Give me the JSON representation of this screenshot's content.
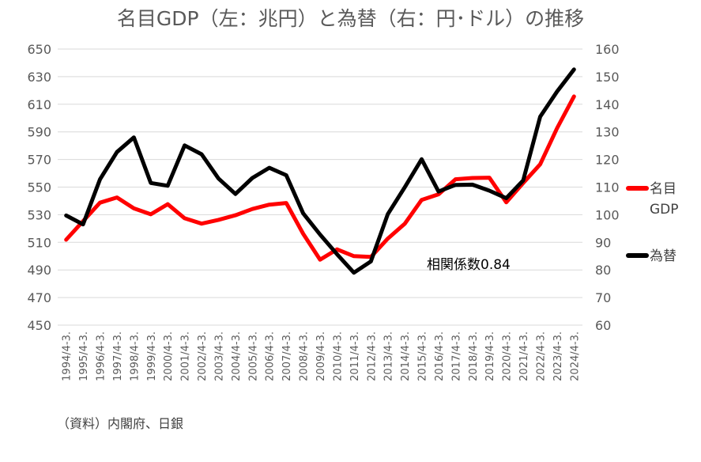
{
  "chart_data": {
    "type": "line",
    "title": "名目GDP（左：兆円）と為替（右：円･ドル）の推移",
    "categories": [
      "1994/4-3.",
      "1995/4-3.",
      "1996/4-3.",
      "1997/4-3.",
      "1998/4-3.",
      "1999/4-3.",
      "2000/4-3.",
      "2001/4-3.",
      "2002/4-3.",
      "2003/4-3.",
      "2004/4-3.",
      "2005/4-3.",
      "2006/4-3.",
      "2007/4-3.",
      "2008/4-3.",
      "2009/4-3.",
      "2010/4-3.",
      "2011/4-3.",
      "2012/4-3.",
      "2013/4-3.",
      "2014/4-3.",
      "2015/4-3.",
      "2016/4-3.",
      "2017/4-3.",
      "2018/4-3.",
      "2019/4-3.",
      "2020/4-3.",
      "2021/4-3.",
      "2022/4-3.",
      "2023/4-3.",
      "2024/4-3."
    ],
    "series": [
      {
        "name": "名目GDP",
        "label_lines": [
          "名目",
          "GDP"
        ],
        "axis": "left",
        "color": "#ff0000",
        "values": [
          511.9,
          525.3,
          538.7,
          542.5,
          534.6,
          530.3,
          537.6,
          527.4,
          523.5,
          526.3,
          529.6,
          534.1,
          537.3,
          538.5,
          516.2,
          497.4,
          504.9,
          500.0,
          499.4,
          512.7,
          523.4,
          540.7,
          544.8,
          555.7,
          556.6,
          556.8,
          539.0,
          553.0,
          566.5,
          592.7,
          615.7
        ]
      },
      {
        "name": "為替",
        "label_lines": [
          "為替"
        ],
        "axis": "right",
        "color": "#000000",
        "values": [
          99.7,
          96.5,
          112.8,
          122.7,
          128.0,
          111.5,
          110.5,
          125.1,
          121.9,
          113.1,
          107.5,
          113.3,
          117.0,
          114.3,
          100.5,
          92.8,
          85.7,
          79.0,
          83.1,
          100.2,
          109.9,
          120.1,
          108.4,
          110.8,
          110.9,
          108.7,
          106.0,
          112.4,
          135.5,
          144.6,
          152.6
        ]
      }
    ],
    "y_left": {
      "min": 450,
      "max": 650,
      "step": 20,
      "tick_labels": [
        "650",
        "630",
        "610",
        "590",
        "570",
        "550",
        "530",
        "510",
        "490",
        "470",
        "450"
      ]
    },
    "y_right": {
      "min": 60,
      "max": 160,
      "step": 10,
      "tick_labels": [
        "160",
        "150",
        "140",
        "130",
        "120",
        "110",
        "100",
        "90",
        "80",
        "70",
        "60"
      ]
    },
    "annotation": "相関係数0.84",
    "grid": true,
    "legend_position": "right"
  },
  "source_note": "（資料）内閣府、日銀"
}
